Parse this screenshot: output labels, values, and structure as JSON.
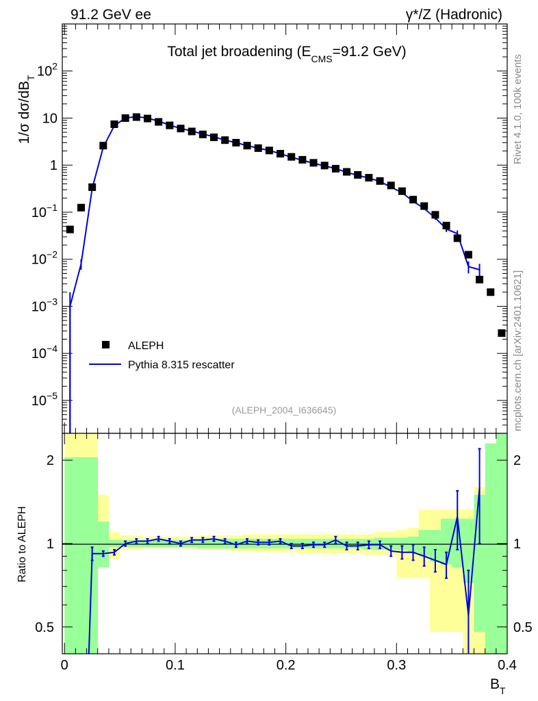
{
  "header": {
    "left": "91.2 GeV ee",
    "right": "γ*/Z (Hadronic)"
  },
  "side_labels": {
    "rivet": "Rivet 4.1.0,  100k events",
    "mcplots": "mcplots.cern.ch [arXiv:2401.10621]"
  },
  "chart_data": [
    {
      "type": "scatter",
      "panel": "main",
      "title": "Total jet broadening (E_CMS=91.2 GeV)",
      "title_parts": {
        "main": "Total jet broadening (E",
        "sub": "CMS",
        "tail": "=91.2 GeV)"
      },
      "ylabel_parts": {
        "main": "1/σ  dσ/dB",
        "sub": "T"
      },
      "yscale": "log",
      "ylim": [
        2e-06,
        1000
      ],
      "xlim": [
        -0.002,
        0.4
      ],
      "y_tick_labels": [
        {
          "base": "10",
          "exp": "2",
          "value": 100
        },
        {
          "base": "10",
          "exp": "",
          "value": 10
        },
        {
          "base": "1",
          "exp": "",
          "value": 1
        },
        {
          "base": "10",
          "exp": "−1",
          "value": 0.1
        },
        {
          "base": "10",
          "exp": "−2",
          "value": 0.01
        },
        {
          "base": "10",
          "exp": "−3",
          "value": 0.001
        },
        {
          "base": "10",
          "exp": "−4",
          "value": 0.0001
        },
        {
          "base": "10",
          "exp": "−5",
          "value": 1e-05
        }
      ],
      "legend": [
        {
          "label": "ALEPH",
          "marker": "square",
          "color": "#000000"
        },
        {
          "label": "Pythia 8.315 rescatter",
          "marker": "line",
          "color": "#0000dd"
        }
      ],
      "annotation": "(ALEPH_2004_I636645)",
      "series": [
        {
          "name": "ALEPH",
          "x": [
            0.005,
            0.015,
            0.025,
            0.035,
            0.045,
            0.055,
            0.065,
            0.075,
            0.085,
            0.095,
            0.105,
            0.115,
            0.125,
            0.135,
            0.145,
            0.155,
            0.165,
            0.175,
            0.185,
            0.195,
            0.205,
            0.215,
            0.225,
            0.235,
            0.245,
            0.255,
            0.265,
            0.275,
            0.285,
            0.295,
            0.305,
            0.315,
            0.325,
            0.335,
            0.345,
            0.355,
            0.365,
            0.375,
            0.385,
            0.395
          ],
          "y": [
            0.043,
            0.125,
            0.34,
            2.6,
            7.4,
            10.0,
            10.5,
            9.8,
            8.3,
            7.0,
            6.0,
            5.2,
            4.5,
            3.9,
            3.4,
            3.0,
            2.6,
            2.3,
            2.05,
            1.75,
            1.5,
            1.3,
            1.12,
            0.98,
            0.84,
            0.72,
            0.62,
            0.54,
            0.46,
            0.37,
            0.28,
            0.185,
            0.135,
            0.088,
            0.052,
            0.028,
            0.0125,
            0.0037,
            0.002,
            0.00027
          ]
        },
        {
          "name": "Pythia 8.315 rescatter",
          "x": [
            0.005,
            0.015,
            0.025,
            0.035,
            0.045,
            0.055,
            0.065,
            0.075,
            0.085,
            0.095,
            0.105,
            0.115,
            0.125,
            0.135,
            0.145,
            0.155,
            0.165,
            0.175,
            0.185,
            0.195,
            0.205,
            0.215,
            0.225,
            0.235,
            0.245,
            0.255,
            0.265,
            0.275,
            0.285,
            0.295,
            0.305,
            0.315,
            0.325,
            0.335,
            0.345,
            0.355,
            0.365,
            0.375
          ],
          "y": [
            0.001,
            0.008,
            0.32,
            2.4,
            6.9,
            10.0,
            10.8,
            10.0,
            8.6,
            7.1,
            6.0,
            5.3,
            4.6,
            4.0,
            3.4,
            3.0,
            2.6,
            2.3,
            2.05,
            1.75,
            1.47,
            1.27,
            1.1,
            0.96,
            0.85,
            0.7,
            0.61,
            0.53,
            0.45,
            0.34,
            0.26,
            0.17,
            0.12,
            0.076,
            0.044,
            0.035,
            0.007,
            0.006
          ],
          "yerr": [
            0.001,
            0.002,
            0.02,
            0.05,
            0.1,
            0.1,
            0.1,
            0.1,
            0.1,
            0.08,
            0.06,
            0.05,
            0.05,
            0.04,
            0.04,
            0.03,
            0.03,
            0.03,
            0.02,
            0.02,
            0.02,
            0.02,
            0.02,
            0.015,
            0.015,
            0.012,
            0.01,
            0.01,
            0.01,
            0.01,
            0.01,
            0.01,
            0.008,
            0.007,
            0.006,
            0.006,
            0.002,
            0.002
          ]
        }
      ]
    },
    {
      "type": "line",
      "panel": "ratio",
      "ylabel": "Ratio to ALEPH",
      "yscale": "log",
      "ylim": [
        0.4,
        2.5
      ],
      "xlim": [
        -0.002,
        0.4
      ],
      "xlabel_parts": {
        "main": "B",
        "sub": "T"
      },
      "x_tick_labels": [
        {
          "label": "0",
          "value": 0
        },
        {
          "label": "0.1",
          "value": 0.1
        },
        {
          "label": "0.2",
          "value": 0.2
        },
        {
          "label": "0.3",
          "value": 0.3
        },
        {
          "label": "0.4",
          "value": 0.4
        }
      ],
      "y_tick_labels": [
        {
          "label": "2",
          "value": 2
        },
        {
          "label": "1",
          "value": 1
        },
        {
          "label": "0.5",
          "value": 0.5
        }
      ],
      "bin_edges": [
        0.0,
        0.01,
        0.02,
        0.03,
        0.04,
        0.05,
        0.06,
        0.07,
        0.08,
        0.09,
        0.1,
        0.11,
        0.12,
        0.13,
        0.14,
        0.15,
        0.16,
        0.17,
        0.18,
        0.19,
        0.2,
        0.21,
        0.22,
        0.23,
        0.24,
        0.25,
        0.26,
        0.27,
        0.28,
        0.29,
        0.3,
        0.31,
        0.32,
        0.33,
        0.34,
        0.35,
        0.36,
        0.37,
        0.38,
        0.39,
        0.4
      ],
      "band_outer": {
        "color": "#ffff99",
        "lo": [
          0.3,
          0.3,
          0.3,
          0.88,
          0.88,
          0.95,
          0.95,
          0.96,
          0.96,
          0.96,
          0.96,
          0.96,
          0.95,
          0.95,
          0.95,
          0.94,
          0.94,
          0.93,
          0.93,
          0.93,
          0.93,
          0.92,
          0.92,
          0.92,
          0.92,
          0.92,
          0.92,
          0.91,
          0.91,
          0.91,
          0.75,
          0.75,
          0.75,
          0.48,
          0.48,
          0.48,
          0.35,
          0.3,
          0.3,
          0.3
        ],
        "hi": [
          2.6,
          2.6,
          2.6,
          1.5,
          1.1,
          1.07,
          1.07,
          1.06,
          1.06,
          1.06,
          1.06,
          1.06,
          1.07,
          1.07,
          1.07,
          1.07,
          1.08,
          1.08,
          1.08,
          1.08,
          1.08,
          1.08,
          1.08,
          1.08,
          1.08,
          1.08,
          1.08,
          1.08,
          1.1,
          1.1,
          1.12,
          1.14,
          1.33,
          1.33,
          1.33,
          1.33,
          1.33,
          1.6,
          2.1,
          2.6
        ]
      },
      "band_inner": {
        "color": "#99ff99",
        "lo": [
          0.3,
          0.3,
          0.3,
          0.82,
          0.97,
          0.97,
          0.97,
          0.97,
          0.97,
          0.97,
          0.97,
          0.97,
          0.96,
          0.96,
          0.96,
          0.96,
          0.96,
          0.96,
          0.96,
          0.96,
          0.96,
          0.96,
          0.96,
          0.96,
          0.96,
          0.96,
          0.96,
          0.95,
          0.95,
          0.95,
          0.95,
          0.93,
          0.9,
          0.86,
          0.84,
          0.82,
          0.72,
          0.48,
          0.3,
          0.3
        ],
        "hi": [
          2.05,
          2.05,
          2.05,
          1.2,
          1.03,
          1.03,
          1.03,
          1.03,
          1.03,
          1.03,
          1.03,
          1.03,
          1.03,
          1.04,
          1.04,
          1.04,
          1.04,
          1.04,
          1.04,
          1.04,
          1.04,
          1.04,
          1.04,
          1.04,
          1.04,
          1.04,
          1.04,
          1.04,
          1.05,
          1.05,
          1.05,
          1.06,
          1.12,
          1.12,
          1.23,
          1.23,
          1.23,
          1.5,
          2.3,
          2.6
        ]
      },
      "series": [
        {
          "name": "Pythia 8.315 rescatter",
          "x": [
            0.025,
            0.035,
            0.045,
            0.055,
            0.065,
            0.075,
            0.085,
            0.095,
            0.105,
            0.115,
            0.125,
            0.135,
            0.145,
            0.155,
            0.165,
            0.175,
            0.185,
            0.195,
            0.205,
            0.215,
            0.225,
            0.235,
            0.245,
            0.255,
            0.265,
            0.275,
            0.285,
            0.295,
            0.305,
            0.315,
            0.325,
            0.335,
            0.345,
            0.355,
            0.365,
            0.375
          ],
          "y": [
            0.92,
            0.92,
            0.93,
            1.0,
            1.02,
            1.02,
            1.04,
            1.02,
            1.0,
            1.03,
            1.03,
            1.04,
            1.02,
            0.99,
            1.02,
            1.01,
            1.01,
            1.02,
            0.98,
            0.98,
            0.99,
            0.99,
            1.03,
            0.98,
            0.98,
            0.99,
            0.99,
            0.94,
            0.93,
            0.93,
            0.9,
            0.87,
            0.84,
            1.25,
            0.55,
            1.6
          ],
          "yerr": [
            0.05,
            0.02,
            0.02,
            0.02,
            0.02,
            0.02,
            0.02,
            0.02,
            0.02,
            0.02,
            0.02,
            0.02,
            0.02,
            0.02,
            0.02,
            0.02,
            0.02,
            0.02,
            0.02,
            0.02,
            0.02,
            0.02,
            0.03,
            0.03,
            0.03,
            0.03,
            0.03,
            0.04,
            0.05,
            0.06,
            0.07,
            0.08,
            0.09,
            0.3,
            0.25,
            0.6
          ]
        }
      ]
    }
  ]
}
